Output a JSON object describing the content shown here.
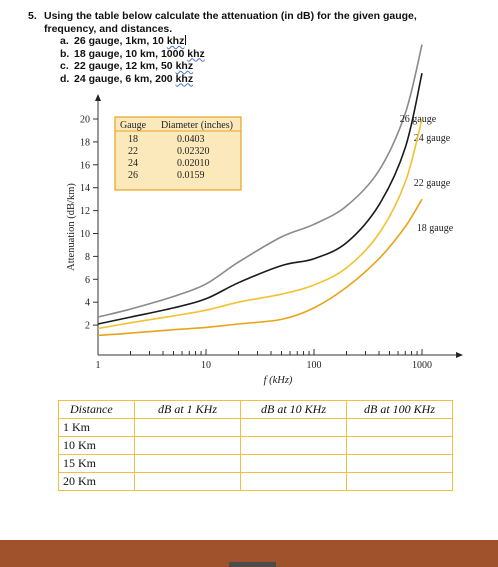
{
  "question": {
    "number": "5.",
    "text_line1": "Using the table below calculate the attenuation (in dB) for the given gauge,",
    "text_line2": "frequency, and distances.",
    "items": [
      {
        "label": "a.",
        "text": "26 gauge, 1km, 10 ",
        "unit": "khz",
        "caret": true
      },
      {
        "label": "b.",
        "text": "18 gauge, 10 km, 1000 ",
        "unit": "khz",
        "caret": false
      },
      {
        "label": "c.",
        "text": "22 gauge, 12 km, 50 ",
        "unit": "khz",
        "caret": false
      },
      {
        "label": "d.",
        "text": "24 gauge, 6 km, 200 ",
        "unit": "khz",
        "caret": false
      }
    ]
  },
  "chart_data": {
    "type": "line",
    "xlabel": "f (kHz)",
    "ylabel": "Attenuation (dB/km)",
    "x_scale": "log",
    "xlim": [
      1,
      1000
    ],
    "ylim": [
      0,
      21
    ],
    "x_ticks": [
      1,
      10,
      100,
      1000
    ],
    "y_ticks": [
      2,
      4,
      6,
      8,
      10,
      12,
      14,
      16,
      18,
      20
    ],
    "grid": false,
    "series": [
      {
        "name": "26 gauge",
        "color": "#8a8a8a",
        "x": [
          1,
          2,
          5,
          10,
          20,
          50,
          100,
          200,
          400,
          700,
          1000
        ],
        "y": [
          2.7,
          3.4,
          4.5,
          5.6,
          7.5,
          9.7,
          10.8,
          12.4,
          15.5,
          20.5,
          26.5
        ]
      },
      {
        "name": "24 gauge",
        "color": "#1a1a1a",
        "x": [
          1,
          2,
          5,
          10,
          20,
          50,
          100,
          200,
          400,
          700,
          1000
        ],
        "y": [
          2.1,
          2.7,
          3.5,
          4.3,
          5.7,
          7.2,
          7.8,
          9.2,
          12.5,
          17.5,
          24.0
        ]
      },
      {
        "name": "22 gauge",
        "color": "#f2c230",
        "x": [
          1,
          2,
          5,
          10,
          20,
          50,
          100,
          200,
          400,
          700,
          1000
        ],
        "y": [
          1.7,
          2.2,
          2.8,
          3.3,
          4.0,
          4.7,
          5.5,
          7.0,
          10.0,
          14.5,
          20.0
        ]
      },
      {
        "name": "18 gauge",
        "color": "#e8a419",
        "x": [
          1,
          2,
          5,
          10,
          20,
          50,
          100,
          200,
          400,
          700,
          1000
        ],
        "y": [
          1.1,
          1.3,
          1.6,
          1.8,
          2.1,
          2.5,
          3.5,
          5.3,
          7.8,
          10.6,
          13.0
        ]
      }
    ],
    "legend_table": {
      "headers": [
        "Gauge",
        "Diameter (inches)"
      ],
      "rows": [
        [
          "18",
          "0.0403"
        ],
        [
          "22",
          "0.02320"
        ],
        [
          "24",
          "0.02010"
        ],
        [
          "26",
          "0.0159"
        ]
      ],
      "placement": "top-left"
    }
  },
  "data_table": {
    "headers": [
      "Distance",
      "dB at 1 KHz",
      "dB at 10 KHz",
      "dB at 100 KHz"
    ],
    "rows": [
      [
        "1 Km",
        "",
        "",
        ""
      ],
      [
        "10 Km",
        "",
        "",
        ""
      ],
      [
        "15 Km",
        "",
        "",
        ""
      ],
      [
        "20 Km",
        "",
        "",
        ""
      ]
    ]
  },
  "colors": {
    "footer": "#a0522d",
    "table_border": "#f0c040",
    "legend_fill": "#fce9bb",
    "legend_border": "#e7a322"
  }
}
